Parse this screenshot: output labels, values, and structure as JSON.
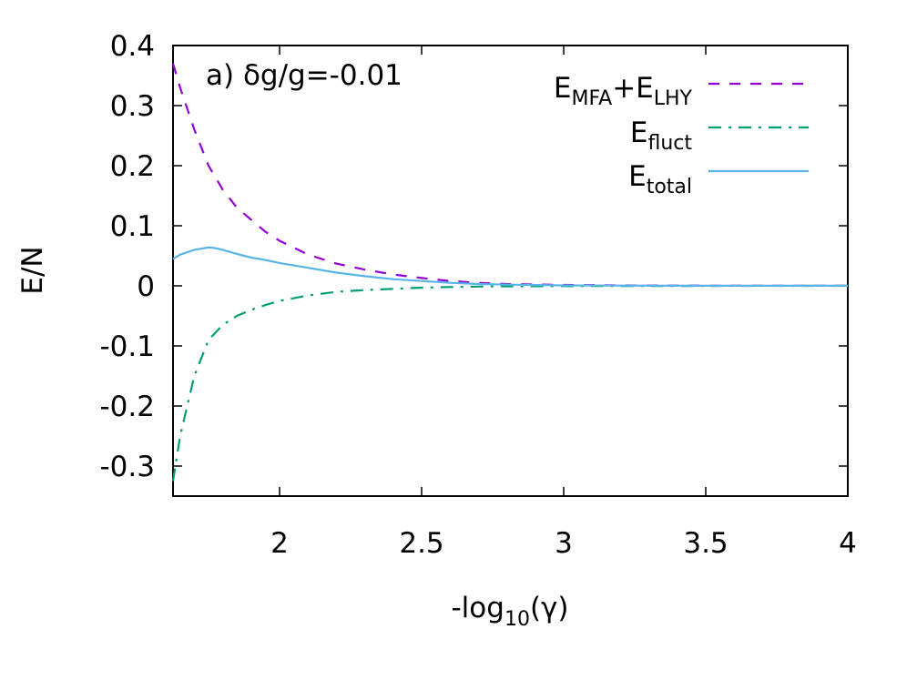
{
  "chart_data": {
    "type": "line",
    "annotation": "a) δg/g=-0.01",
    "xlabel": {
      "main": "-log",
      "sub": "10",
      "tail": "(γ)"
    },
    "ylabel": "E/N",
    "xlim": [
      1.625,
      4.0
    ],
    "ylim": [
      -0.35,
      0.4
    ],
    "xticks": [
      "2",
      "2.5",
      "3",
      "3.5",
      "4"
    ],
    "yticks": [
      "0.4",
      "0.3",
      "0.2",
      "0.1",
      "0",
      "-0.1",
      "-0.2",
      "-0.3"
    ],
    "grid": false,
    "legend_position": "top-right",
    "series": [
      {
        "legend_main": "E",
        "legend_sub": "MFA",
        "legend_plus": "+E",
        "legend_sub2": "LHY",
        "color": "#9400d3",
        "dash": "dashed",
        "x": [
          1.625,
          1.65,
          1.7,
          1.75,
          1.8,
          1.85,
          1.9,
          1.95,
          2.0,
          2.1,
          2.2,
          2.3,
          2.4,
          2.5,
          2.6,
          2.7,
          2.8,
          3.0,
          3.2,
          3.5,
          4.0
        ],
        "y": [
          0.37,
          0.33,
          0.26,
          0.2,
          0.16,
          0.13,
          0.11,
          0.09,
          0.075,
          0.052,
          0.037,
          0.027,
          0.019,
          0.013,
          0.008,
          0.005,
          0.003,
          0.0015,
          0.0008,
          0.0003,
          0.0001
        ]
      },
      {
        "legend_main": "E",
        "legend_sub": "fluct",
        "color": "#009e73",
        "dash": "dashdot",
        "x": [
          1.625,
          1.65,
          1.7,
          1.75,
          1.8,
          1.85,
          1.9,
          1.95,
          2.0,
          2.1,
          2.2,
          2.3,
          2.4,
          2.5,
          2.6,
          2.7,
          2.8,
          3.0,
          3.2,
          3.5,
          4.0
        ],
        "y": [
          -0.325,
          -0.25,
          -0.15,
          -0.09,
          -0.065,
          -0.05,
          -0.04,
          -0.032,
          -0.025,
          -0.016,
          -0.01,
          -0.007,
          -0.005,
          -0.003,
          -0.002,
          -0.0012,
          -0.0008,
          -0.0004,
          -0.0002,
          -0.0001,
          0.0
        ]
      },
      {
        "legend_main": "E",
        "legend_sub": "total",
        "color": "#56b4e9",
        "dash": "solid",
        "x": [
          1.625,
          1.65,
          1.7,
          1.75,
          1.77,
          1.8,
          1.85,
          1.9,
          1.95,
          2.0,
          2.1,
          2.2,
          2.3,
          2.4,
          2.5,
          2.6,
          2.7,
          2.8,
          3.0,
          3.2,
          3.5,
          4.0
        ],
        "y": [
          0.045,
          0.052,
          0.06,
          0.064,
          0.063,
          0.06,
          0.053,
          0.047,
          0.043,
          0.038,
          0.03,
          0.022,
          0.016,
          0.011,
          0.008,
          0.005,
          0.003,
          0.002,
          0.0008,
          0.0004,
          0.0002,
          0.0001
        ]
      }
    ]
  }
}
